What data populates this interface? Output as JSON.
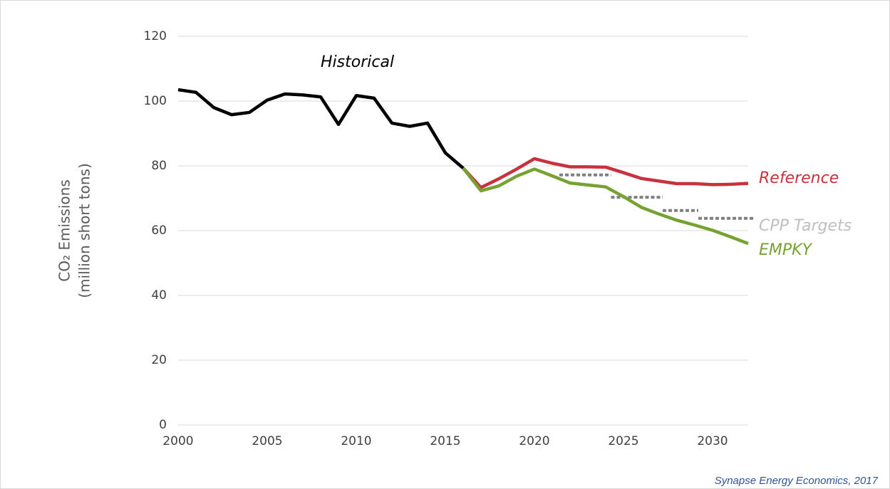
{
  "chart_data": {
    "type": "line",
    "ylabel": [
      "CO₂ Emissions",
      "(million short tons)"
    ],
    "source": "Synapse Energy Economics, 2017",
    "xlim": [
      2000,
      2032
    ],
    "xticks": [
      2000,
      2005,
      2010,
      2015,
      2020,
      2025,
      2030
    ],
    "ylim": [
      0,
      120
    ],
    "yticks": [
      0,
      20,
      40,
      60,
      80,
      100,
      120
    ],
    "grid": true,
    "series": [
      {
        "name": "Historical",
        "color": "#000000",
        "x": [
          2000,
          2001,
          2002,
          2003,
          2004,
          2005,
          2006,
          2007,
          2008,
          2009,
          2010,
          2011,
          2012,
          2013,
          2014,
          2015,
          2016
        ],
        "values": [
          103.5,
          102.7,
          98,
          95.8,
          96.5,
          100.3,
          102.2,
          101.9,
          101.3,
          92.8,
          101.7,
          100.9,
          93.2,
          92.2,
          93.2,
          84,
          79.3
        ]
      },
      {
        "name": "Reference",
        "color": "#c8323c",
        "x": [
          2016,
          2017,
          2018,
          2019,
          2020,
          2021,
          2022,
          2023,
          2024,
          2025,
          2026,
          2027,
          2028,
          2029,
          2030,
          2031,
          2032
        ],
        "values": [
          79.3,
          73.3,
          76,
          79,
          82.2,
          80.8,
          79.7,
          79.7,
          79.6,
          77.9,
          76.1,
          75.3,
          74.5,
          74.5,
          74.2,
          74.3,
          74.6
        ]
      },
      {
        "name": "CPP Targets",
        "color": "#808080",
        "style": "steps",
        "steps": [
          {
            "x": [
              2021.4,
              2024.3
            ],
            "value": 77.2
          },
          {
            "x": [
              2024.3,
              2027.2
            ],
            "value": 70.3
          },
          {
            "x": [
              2027.2,
              2029.2
            ],
            "value": 66.2
          },
          {
            "x": [
              2029.2,
              2032.4
            ],
            "value": 63.8
          }
        ]
      },
      {
        "name": "EMPKY",
        "color": "#76a232",
        "x": [
          2016,
          2017,
          2018,
          2019,
          2020,
          2021,
          2022,
          2023,
          2024,
          2025,
          2026,
          2027,
          2028,
          2029,
          2030,
          2031,
          2032
        ],
        "values": [
          79.3,
          72.3,
          73.8,
          76.8,
          79,
          76.9,
          74.7,
          74.1,
          73.5,
          70.5,
          67.2,
          65.1,
          63.2,
          61.7,
          60.1,
          58.1,
          56
        ]
      }
    ]
  }
}
